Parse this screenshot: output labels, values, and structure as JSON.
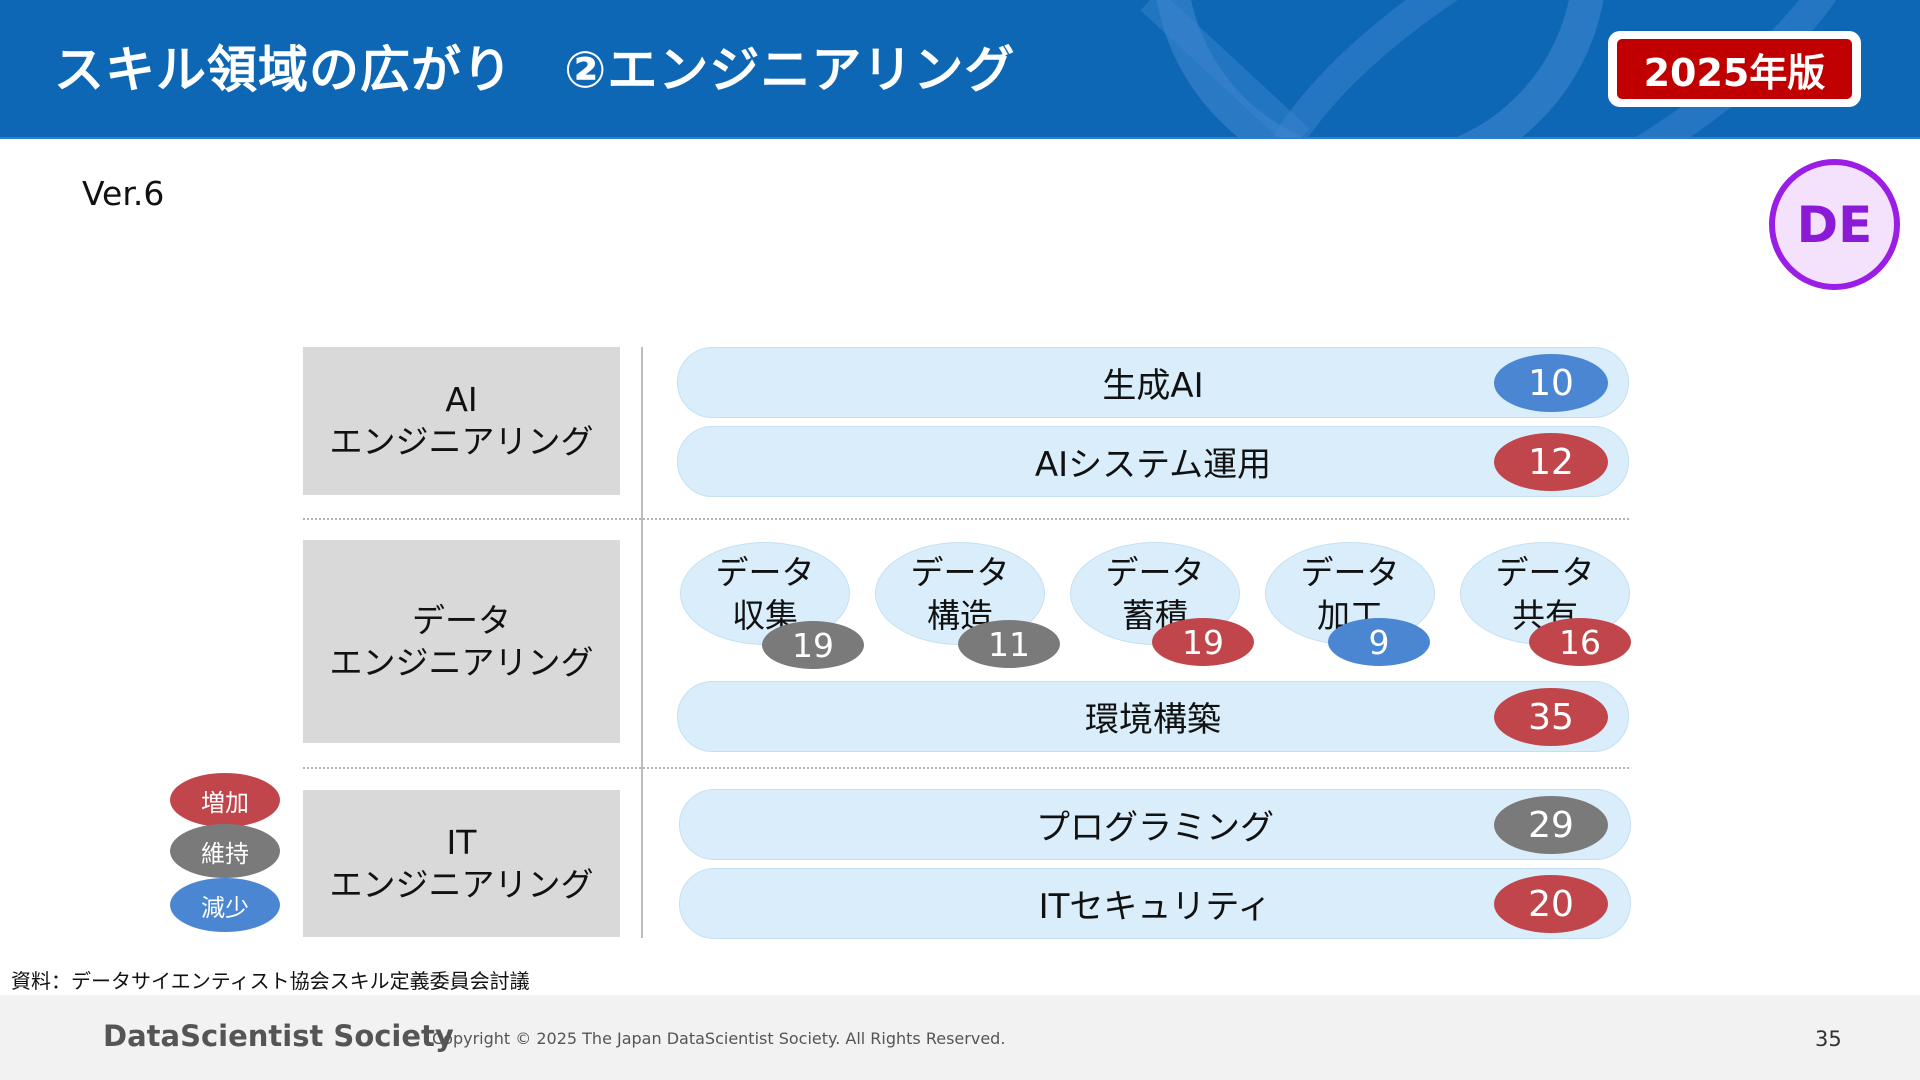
{
  "header": {
    "title": "スキル領域の広がり　②エンジニアリング",
    "edition_badge": "2025年版"
  },
  "version": "Ver.6",
  "de_badge": "DE",
  "categories": {
    "ai": {
      "line1": "AI",
      "line2": "エンジニアリング"
    },
    "data": {
      "line1": "データ",
      "line2": "エンジニアリング"
    },
    "it": {
      "line1": "IT",
      "line2": "エンジニアリング"
    }
  },
  "skills": {
    "genai": {
      "label": "生成AI",
      "count": "10",
      "trend": "減少"
    },
    "ai_ops": {
      "label": "AIシステム運用",
      "count": "12",
      "trend": "増加"
    },
    "data_collect": {
      "line1": "データ",
      "line2": "収集",
      "count": "19",
      "trend": "維持"
    },
    "data_structure": {
      "line1": "データ",
      "line2": "構造",
      "count": "11",
      "trend": "維持"
    },
    "data_store": {
      "line1": "データ",
      "line2": "蓄積",
      "count": "19",
      "trend": "増加"
    },
    "data_process": {
      "line1": "データ",
      "line2": "加工",
      "count": "9",
      "trend": "減少"
    },
    "data_share": {
      "line1": "データ",
      "line2": "共有",
      "count": "16",
      "trend": "増加"
    },
    "env_build": {
      "label": "環境構築",
      "count": "35",
      "trend": "増加"
    },
    "programming": {
      "label": "プログラミング",
      "count": "29",
      "trend": "維持"
    },
    "it_security": {
      "label": "ITセキュリティ",
      "count": "20",
      "trend": "増加"
    }
  },
  "legend": {
    "increase": "増加",
    "maintain": "維持",
    "decrease": "減少"
  },
  "colors": {
    "header_blue": "#0d67b5",
    "increase": "#c0464b",
    "maintain": "#7a7a7a",
    "decrease": "#4a86d2",
    "pill_bg": "#d9eefa",
    "category_bg": "#d9d9d9",
    "badge_red": "#c00000",
    "de_purple": "#9a1ee6"
  },
  "source": "資料：データサイエンティスト協会スキル定義委員会討議",
  "footer": {
    "brand": "DataScientist Society",
    "copyright": "Copyright © 2025 The Japan DataScientist Society. All Rights Reserved.",
    "page_number": "35"
  }
}
